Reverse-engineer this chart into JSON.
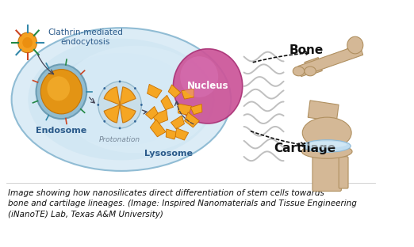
{
  "bg_color": "#ffffff",
  "caption_lines": [
    "Image showing how nanosilicates direct differentiation of stem cells towards",
    "bone and cartilage lineages. (Image: Inspired Nanomaterials and Tissue Engineering",
    "(iNanoTE) Lab, Texas A&M University)"
  ],
  "caption_fontsize": 7.5,
  "clathrin_label": "Clathrin-mediated\nendocytosis",
  "endosome_label": "Endosome",
  "protonation_label": "Protonation",
  "lysosome_label": "Lysosome",
  "nucleus_label": "Nucleus",
  "bone_label": "Bone",
  "cartilage_label": "Cartilage",
  "label_color_dark": "#2a5a8a",
  "orange_color": "#f5a623",
  "nucleus_color": "#c966a0",
  "cell_color": "#b8d8ed",
  "cell_edge": "#90bcd4"
}
